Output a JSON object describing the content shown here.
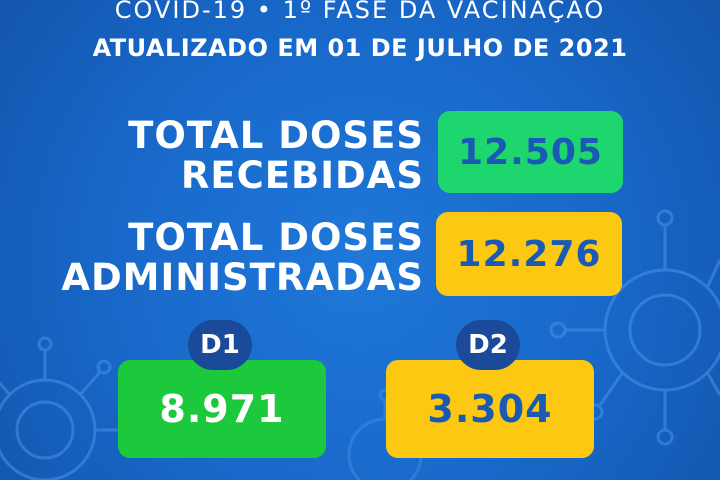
{
  "header": {
    "campaign": "COVID-19 •  1º FASE DA VACINAÇÃO",
    "updated": "ATUALIZADO EM 01 DE JULHO DE 2021"
  },
  "stats": {
    "received": {
      "label_line1": "TOTAL DOSES",
      "label_line2": "RECEBIDAS",
      "value": "12.505",
      "color": "#1ed66e"
    },
    "administered": {
      "label_line1": "TOTAL DOSES",
      "label_line2": "ADMINISTRADAS",
      "value": "12.276",
      "color": "#fcc812"
    }
  },
  "doses": {
    "d1": {
      "label": "D1",
      "value": "8.971",
      "color": "#1cc83c"
    },
    "d2": {
      "label": "D2",
      "value": "3.304",
      "color": "#fcc812"
    }
  },
  "colors": {
    "background": "#1868c9",
    "badge": "#1b4a9a",
    "value_text": "#1a5ab5"
  },
  "decoration": {
    "icon": "virus-icon"
  }
}
